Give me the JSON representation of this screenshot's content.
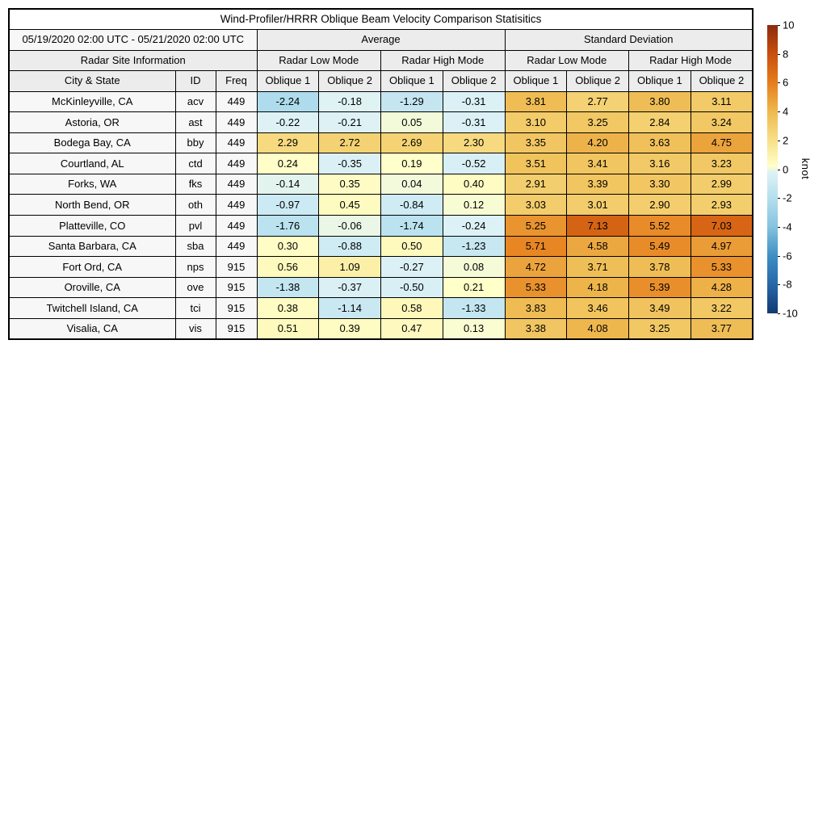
{
  "chart_data": {
    "type": "heatmap",
    "title": "Wind-Profiler/HRRR Oblique Beam Velocity Comparison Statisitics",
    "period": "05/19/2020 02:00 UTC - 05/21/2020 02:00 UTC",
    "headers": {
      "group_average": "Average",
      "group_std_dev": "Standard Deviation",
      "site_info": "Radar Site Information",
      "mode_low": "Radar Low Mode",
      "mode_high": "Radar High Mode",
      "city": "City & State",
      "id": "ID",
      "freq": "Freq",
      "oblique1": "Oblique 1",
      "oblique2": "Oblique 2"
    },
    "value_column_keys": [
      "avg-low-oblique1",
      "avg-low-oblique2",
      "avg-high-oblique1",
      "avg-high-oblique2",
      "sd-low-oblique1",
      "sd-low-oblique2",
      "sd-high-oblique1",
      "sd-high-oblique2"
    ],
    "rows": [
      {
        "city": "McKinleyville, CA",
        "id": "acv",
        "freq": "449",
        "values": [
          -2.24,
          -0.18,
          -1.29,
          -0.31,
          3.81,
          2.77,
          3.8,
          3.11
        ]
      },
      {
        "city": "Astoria, OR",
        "id": "ast",
        "freq": "449",
        "values": [
          -0.22,
          -0.21,
          0.05,
          -0.31,
          3.1,
          3.25,
          2.84,
          3.24
        ]
      },
      {
        "city": "Bodega Bay, CA",
        "id": "bby",
        "freq": "449",
        "values": [
          2.29,
          2.72,
          2.69,
          2.3,
          3.35,
          4.2,
          3.63,
          4.75
        ]
      },
      {
        "city": "Courtland, AL",
        "id": "ctd",
        "freq": "449",
        "values": [
          0.24,
          -0.35,
          0.19,
          -0.52,
          3.51,
          3.41,
          3.16,
          3.23
        ]
      },
      {
        "city": "Forks, WA",
        "id": "fks",
        "freq": "449",
        "values": [
          -0.14,
          0.35,
          0.04,
          0.4,
          2.91,
          3.39,
          3.3,
          2.99
        ]
      },
      {
        "city": "North Bend, OR",
        "id": "oth",
        "freq": "449",
        "values": [
          -0.97,
          0.45,
          -0.84,
          0.12,
          3.03,
          3.01,
          2.9,
          2.93
        ]
      },
      {
        "city": "Platteville, CO",
        "id": "pvl",
        "freq": "449",
        "values": [
          -1.76,
          -0.06,
          -1.74,
          -0.24,
          5.25,
          7.13,
          5.52,
          7.03
        ]
      },
      {
        "city": "Santa Barbara, CA",
        "id": "sba",
        "freq": "449",
        "values": [
          0.3,
          -0.88,
          0.5,
          -1.23,
          5.71,
          4.58,
          5.49,
          4.97
        ]
      },
      {
        "city": "Fort Ord, CA",
        "id": "nps",
        "freq": "915",
        "values": [
          0.56,
          1.09,
          -0.27,
          0.08,
          4.72,
          3.71,
          3.78,
          5.33
        ]
      },
      {
        "city": "Oroville, CA",
        "id": "ove",
        "freq": "915",
        "values": [
          -1.38,
          -0.37,
          -0.5,
          0.21,
          5.33,
          4.18,
          5.39,
          4.28
        ]
      },
      {
        "city": "Twitchell Island, CA",
        "id": "tci",
        "freq": "915",
        "values": [
          0.38,
          -1.14,
          0.58,
          -1.33,
          3.83,
          3.46,
          3.49,
          3.22
        ]
      },
      {
        "city": "Visalia, CA",
        "id": "vis",
        "freq": "915",
        "values": [
          0.51,
          0.39,
          0.47,
          0.13,
          3.38,
          4.08,
          3.25,
          3.77
        ]
      }
    ],
    "colorbar": {
      "label": "knot",
      "vmin": -10,
      "vmax": 10,
      "ticks": [
        10,
        8,
        6,
        4,
        2,
        0,
        -2,
        -4,
        -6,
        -8,
        -10
      ],
      "gradient": [
        {
          "value": 10,
          "color": "#8a2c0d"
        },
        {
          "value": 8,
          "color": "#c84f0e"
        },
        {
          "value": 6,
          "color": "#e67d1c"
        },
        {
          "value": 4,
          "color": "#eeb94f"
        },
        {
          "value": 2,
          "color": "#f8e088"
        },
        {
          "value": 0.2,
          "color": "#ffffc9"
        },
        {
          "value": -0.2,
          "color": "#def2f6"
        },
        {
          "value": -2,
          "color": "#b5dfee"
        },
        {
          "value": -4,
          "color": "#85c3de"
        },
        {
          "value": -6,
          "color": "#3f8fc4"
        },
        {
          "value": -8,
          "color": "#2667a9"
        },
        {
          "value": -10,
          "color": "#123a70"
        }
      ]
    },
    "layout": {
      "grid": true,
      "legend_position": "right-colorbar",
      "axis_ranges": {
        "colorbar": [
          -10,
          10
        ]
      }
    }
  }
}
